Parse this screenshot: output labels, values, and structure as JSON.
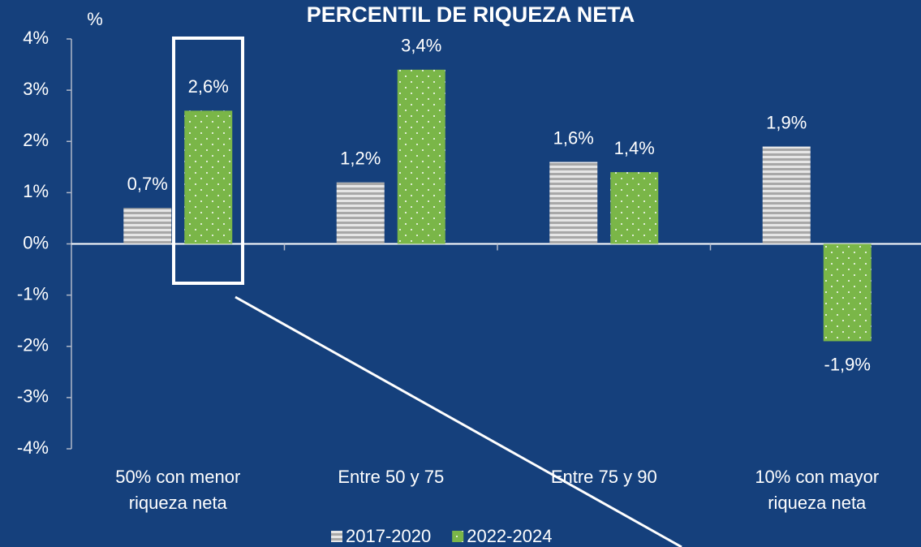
{
  "chart_data": {
    "type": "bar",
    "title": "PERCENTIL DE RIQUEZA NETA",
    "y_label": "%",
    "categories": [
      "50% con menor riqueza neta",
      "Entre 50 y 75",
      "Entre 75 y 90",
      "10% con mayor riqueza neta"
    ],
    "series": [
      {
        "name": "2017-2020",
        "color": "#c8c8c8",
        "values": [
          0.7,
          1.2,
          1.6,
          1.9
        ],
        "value_labels": [
          "0,7%",
          "1,2%",
          "1,6%",
          "1,9%"
        ]
      },
      {
        "name": "2022-2024",
        "color": "#7ab648",
        "values": [
          2.6,
          3.4,
          1.4,
          -1.9
        ],
        "value_labels": [
          "2,6%",
          "3,4%",
          "1,4%",
          "-1,9%"
        ]
      }
    ],
    "ylim": [
      -4,
      4
    ],
    "yticks": [
      {
        "value": -4,
        "label": "-4%"
      },
      {
        "value": -3,
        "label": "-3%"
      },
      {
        "value": -2,
        "label": "-2%"
      },
      {
        "value": -1,
        "label": "-1%"
      },
      {
        "value": 0,
        "label": "0%"
      },
      {
        "value": 1,
        "label": "1%"
      },
      {
        "value": 2,
        "label": "2%"
      },
      {
        "value": 3,
        "label": "3%"
      },
      {
        "value": 4,
        "label": "4%"
      }
    ],
    "legend": "bottom"
  }
}
